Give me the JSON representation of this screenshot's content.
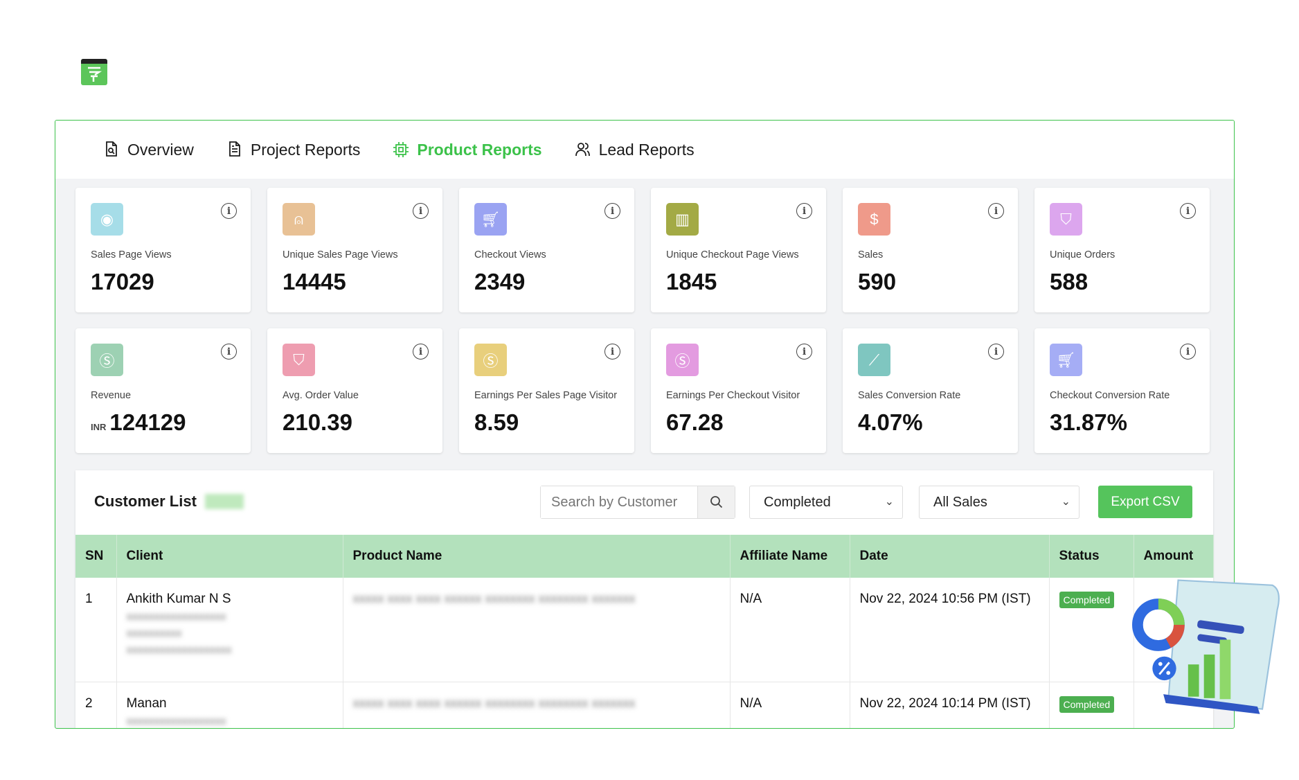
{
  "tabs": [
    {
      "label": "Overview",
      "icon": "file-search-icon"
    },
    {
      "label": "Project Reports",
      "icon": "document-icon"
    },
    {
      "label": "Product Reports",
      "icon": "chip-icon",
      "active": true
    },
    {
      "label": "Lead Reports",
      "icon": "users-icon"
    }
  ],
  "accent": "#3cc24a",
  "cards": [
    {
      "label": "Sales Page Views",
      "value": "17029",
      "color": "#a6dde8",
      "icon": "eye-icon"
    },
    {
      "label": "Unique Sales Page Views",
      "value": "14445",
      "color": "#e8c195",
      "icon": "user-icon"
    },
    {
      "label": "Checkout Views",
      "value": "2349",
      "color": "#9aa3f2",
      "icon": "cart-icon"
    },
    {
      "label": "Unique Checkout Page Views",
      "value": "1845",
      "color": "#a3aa45",
      "icon": "bar-chart-icon"
    },
    {
      "label": "Sales",
      "value": "590",
      "color": "#ef9a8a",
      "icon": "dollar-icon"
    },
    {
      "label": "Unique Orders",
      "value": "588",
      "color": "#dca6ee",
      "icon": "bag-icon"
    },
    {
      "label": "Revenue",
      "value": "124129",
      "prefix": "INR",
      "color": "#9dd1b3",
      "icon": "coin-icon"
    },
    {
      "label": "Avg. Order Value",
      "value": "210.39",
      "color": "#ee9db0",
      "icon": "bag-icon"
    },
    {
      "label": "Earnings Per Sales Page Visitor",
      "value": "8.59",
      "color": "#e8cf7c",
      "icon": "coin-icon"
    },
    {
      "label": "Earnings Per Checkout Visitor",
      "value": "67.28",
      "color": "#e39be0",
      "icon": "coin-icon"
    },
    {
      "label": "Sales Conversion Rate",
      "value": "4.07%",
      "color": "#7fc6c0",
      "icon": "line-chart-icon"
    },
    {
      "label": "Checkout Conversion Rate",
      "value": "31.87%",
      "color": "#a5adf5",
      "icon": "cart-icon"
    }
  ],
  "customers": {
    "title": "Customer List",
    "search_placeholder": "Search by Customer",
    "status_filter": "Completed",
    "sales_filter": "All Sales",
    "export_label": "Export CSV",
    "columns": [
      "SN",
      "Client",
      "Product Name",
      "Affiliate Name",
      "Date",
      "Status",
      "Amount"
    ],
    "rows": [
      {
        "sn": "1",
        "client": "Ankith Kumar N S",
        "affiliate": "N/A",
        "date": "Nov 22, 2024 10:56 PM (IST)",
        "status": "Completed"
      },
      {
        "sn": "2",
        "client": "Manan",
        "affiliate": "N/A",
        "date": "Nov 22, 2024 10:14 PM (IST)",
        "status": "Completed"
      }
    ]
  }
}
